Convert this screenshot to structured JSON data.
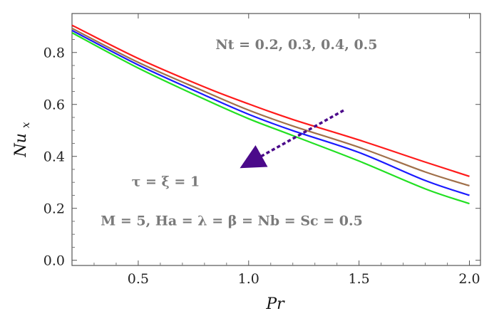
{
  "chart_data": {
    "type": "line",
    "xlabel": "Pr",
    "ylabel": "Nu_x",
    "xlim": [
      0.2,
      2.05
    ],
    "ylim": [
      -0.02,
      0.95
    ],
    "xticks": [
      0.5,
      1.0,
      1.5,
      2.0
    ],
    "xtick_labels": [
      "0.5",
      "1.0",
      "1.5",
      "2.0"
    ],
    "yticks": [
      0.0,
      0.2,
      0.4,
      0.6,
      0.8
    ],
    "ytick_labels": [
      "0.0",
      "0.2",
      "0.4",
      "0.6",
      "0.8"
    ],
    "grid": false,
    "x": [
      0.2,
      0.5,
      0.8,
      1.0,
      1.2,
      1.5,
      1.8,
      2.0
    ],
    "series": [
      {
        "color": "#ff1a1a",
        "values": [
          0.905,
          0.777,
          0.667,
          0.602,
          0.542,
          0.463,
          0.378,
          0.323
        ]
      },
      {
        "color": "#a0704a",
        "values": [
          0.893,
          0.762,
          0.65,
          0.578,
          0.517,
          0.435,
          0.34,
          0.287
        ]
      },
      {
        "color": "#1a1aff",
        "values": [
          0.885,
          0.752,
          0.636,
          0.562,
          0.499,
          0.415,
          0.307,
          0.25
        ]
      },
      {
        "color": "#22e022",
        "values": [
          0.876,
          0.74,
          0.62,
          0.545,
          0.48,
          0.382,
          0.275,
          0.218
        ]
      }
    ],
    "arrow": {
      "from": [
        1.43,
        0.577
      ],
      "to": [
        0.98,
        0.364
      ],
      "color": "#4b0a8a"
    },
    "annotations": [
      {
        "id": "nt",
        "text": "Nt = 0.2,  0.3,  0.4,  0.5",
        "x": 0.85,
        "y": 0.813
      },
      {
        "id": "tau",
        "text": "τ = ξ = 1",
        "x": 0.47,
        "y": 0.285
      },
      {
        "id": "params",
        "text": "M = 5,  Ha = λ = β = Nb = Sc = 0.5",
        "x": 0.33,
        "y": 0.135
      }
    ]
  }
}
